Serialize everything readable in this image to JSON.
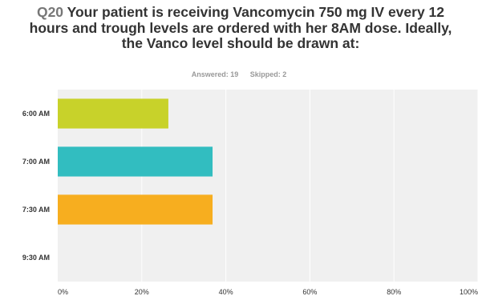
{
  "title": {
    "qnum": "Q20",
    "text": "Your patient is receiving Vancomycin 750 mg IV every 12 hours and trough levels are ordered with her 8AM dose. Ideally, the Vanco level should be drawn at:"
  },
  "meta": {
    "answered": "Answered: 19",
    "skipped": "Skipped: 2"
  },
  "chart_data": {
    "type": "bar",
    "orientation": "horizontal",
    "categories": [
      "6:00 AM",
      "7:00 AM",
      "7:30 AM",
      "9:30 AM"
    ],
    "values": [
      26.32,
      36.84,
      36.84,
      0
    ],
    "colors": [
      "#c8d22a",
      "#32bdc0",
      "#f7ae1f",
      "#9b7ab6"
    ],
    "xlim": [
      0,
      100
    ],
    "xticks": [
      "0%",
      "20%",
      "40%",
      "60%",
      "80%",
      "100%"
    ],
    "grid": true,
    "plot_background": "#f0f0f0"
  }
}
